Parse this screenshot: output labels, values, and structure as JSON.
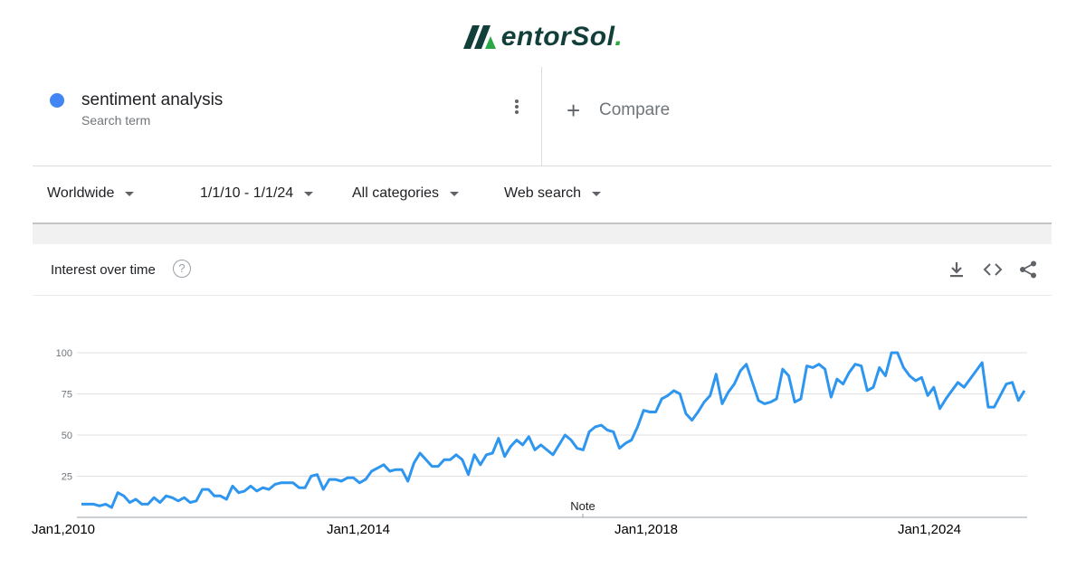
{
  "brand": {
    "name_main": "entorSol",
    "name_dot": "."
  },
  "search_term": {
    "title": "sentiment analysis",
    "subtitle": "Search term",
    "color": "#4285f4"
  },
  "compare": {
    "label": "Compare"
  },
  "filters": {
    "region": "Worldwide",
    "date_range": "1/1/10 - 1/1/24",
    "category": "All categories",
    "search_type": "Web search"
  },
  "panel": {
    "title": "Interest over time",
    "help": "?"
  },
  "icons": [
    "menu-dots-icon",
    "plus-icon",
    "chevron-down-icon",
    "help-icon",
    "download-icon",
    "embed-icon",
    "share-icon"
  ],
  "chart_data": {
    "type": "line",
    "title": "Interest over time",
    "x_tick_labels": [
      "Jan1,2010",
      "Jan1,2014",
      "Jan1,2018",
      "Jan1,2024"
    ],
    "y_ticks": [
      25,
      50,
      75,
      100
    ],
    "ylim": [
      0,
      100
    ],
    "grid": true,
    "annotation": "Note",
    "line_color": "#2f96f0",
    "series": [
      {
        "values": [
          8,
          8,
          8,
          7,
          8,
          6,
          15,
          13,
          9,
          11,
          8,
          8,
          12,
          9,
          13,
          12,
          10,
          12,
          9,
          10,
          17,
          17,
          13,
          13,
          11,
          19,
          15,
          16,
          19,
          16,
          18,
          17,
          20,
          21,
          21,
          21,
          18,
          18,
          25,
          26,
          17,
          23,
          23,
          22,
          24,
          24,
          21,
          23,
          28,
          30,
          32,
          28,
          29,
          29,
          22,
          33,
          39,
          35,
          31,
          31,
          35,
          35,
          38,
          35,
          26,
          38,
          32,
          38,
          39,
          48,
          37,
          43,
          47,
          44,
          49,
          41,
          44,
          41,
          38,
          44,
          50,
          47,
          42,
          41,
          52,
          55,
          56,
          53,
          52,
          42,
          45,
          47,
          55,
          65,
          64,
          64,
          72,
          74,
          77,
          75,
          63,
          59,
          64,
          70,
          74,
          87,
          69,
          76,
          81,
          89,
          93,
          82,
          71,
          69,
          70,
          72,
          90,
          86,
          70,
          72,
          92,
          91,
          93,
          90,
          73,
          84,
          81,
          88,
          93,
          92,
          77,
          79,
          91,
          86,
          100,
          100,
          91,
          86,
          83,
          85,
          74,
          79,
          66,
          72,
          77,
          82,
          79,
          84,
          89,
          94,
          67,
          67,
          74,
          81,
          82,
          71,
          77
        ]
      }
    ]
  }
}
